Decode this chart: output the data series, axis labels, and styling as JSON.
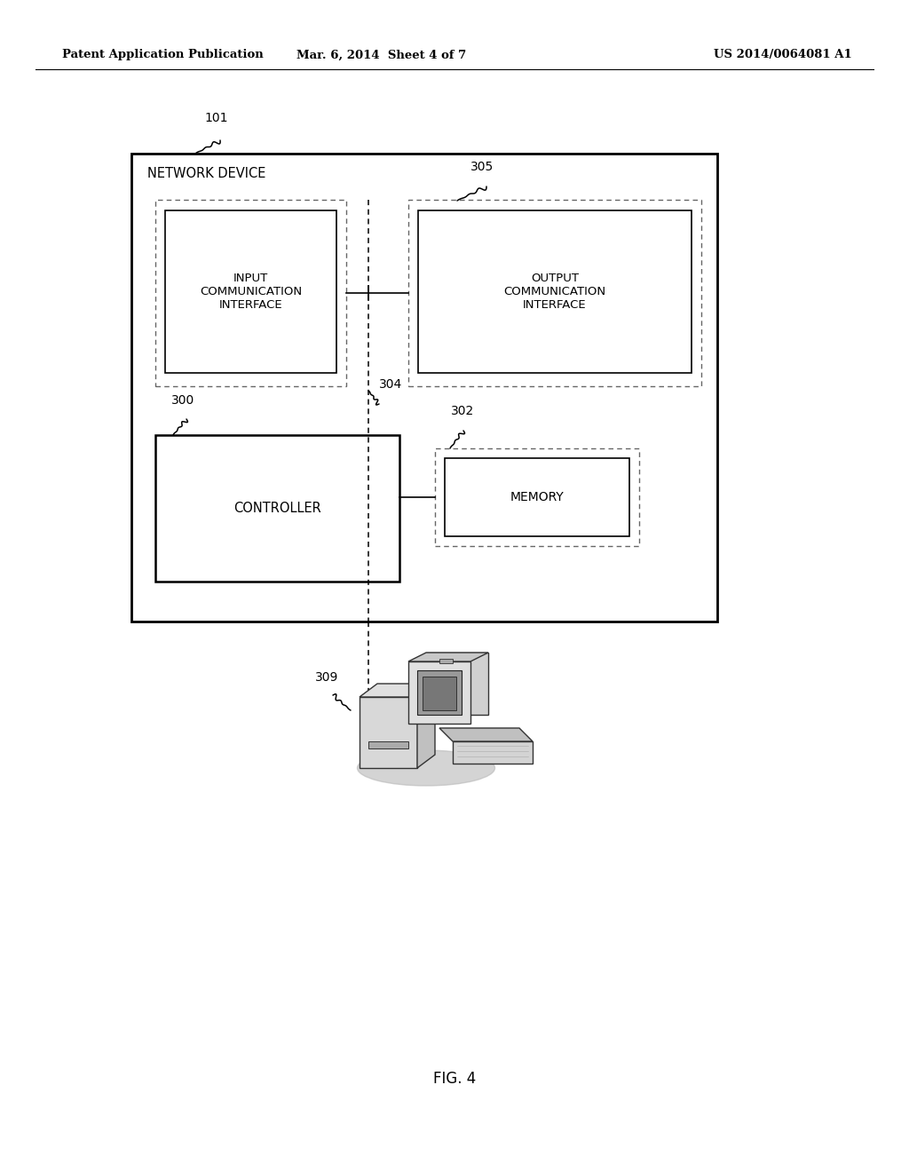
{
  "bg_color": "#ffffff",
  "header_left": "Patent Application Publication",
  "header_mid": "Mar. 6, 2014  Sheet 4 of 7",
  "header_right": "US 2014/0064081 A1",
  "fig_label": "FIG. 4",
  "network_device_label": "NETWORK DEVICE",
  "input_label": "INPUT\nCOMMUNICATION\nINTERFACE",
  "output_label": "OUTPUT\nCOMMUNICATION\nINTERFACE",
  "controller_label": "CONTROLLER",
  "memory_label": "MEMORY",
  "label_101": "101",
  "label_305": "305",
  "label_304": "304",
  "label_300": "300",
  "label_302": "302",
  "label_309": "309"
}
